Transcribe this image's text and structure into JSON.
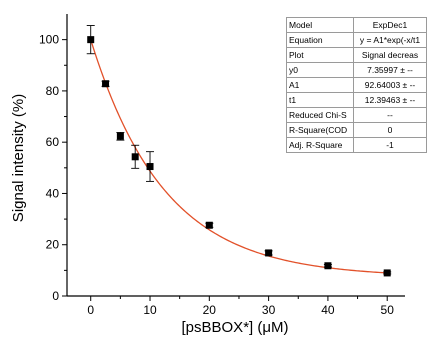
{
  "chart_data": {
    "type": "scatter",
    "xlabel": "[psBBOX*] (μM)",
    "ylabel": "Signal intensity (%)",
    "xlim": [
      -4,
      53
    ],
    "ylim": [
      0,
      110
    ],
    "xticks": [
      0,
      10,
      20,
      30,
      40,
      50
    ],
    "xticklabels": [
      "0",
      "10",
      "20",
      "30",
      "40",
      "50"
    ],
    "yticks": [
      0,
      20,
      40,
      60,
      80,
      100
    ],
    "yticklabels": [
      "0",
      "20",
      "40",
      "60",
      "80",
      "100"
    ],
    "grid": false,
    "points": [
      {
        "x": 0,
        "y": 100,
        "err": 5.5
      },
      {
        "x": 2.5,
        "y": 82.8,
        "err": 1.0
      },
      {
        "x": 5,
        "y": 62.3,
        "err": 1.5
      },
      {
        "x": 7.5,
        "y": 54.3,
        "err": 4.5
      },
      {
        "x": 10,
        "y": 50.5,
        "err": 5.8
      },
      {
        "x": 20,
        "y": 27.6,
        "err": 0.8
      },
      {
        "x": 30,
        "y": 16.8,
        "err": 0.8
      },
      {
        "x": 40,
        "y": 11.8,
        "err": 0.5
      },
      {
        "x": 50,
        "y": 9.0,
        "err": 0.4
      }
    ],
    "fit": {
      "y0": 7.35997,
      "A1": 92.64003,
      "t1": 12.39463
    },
    "marker_color": "#000000",
    "fit_color": "#e2512a"
  },
  "fit_table": {
    "rows": [
      {
        "key": "Model",
        "value": "ExpDec1"
      },
      {
        "key": "Equation",
        "value": "y = A1*exp(-x/t1"
      },
      {
        "key": "Plot",
        "value": "Signal decreas"
      },
      {
        "key": "y0",
        "value": "7.35997 ± --"
      },
      {
        "key": "A1",
        "value": "92.64003 ± --"
      },
      {
        "key": "t1",
        "value": "12.39463 ± --"
      },
      {
        "key": "Reduced Chi-S",
        "value": "--"
      },
      {
        "key": "R-Square(COD",
        "value": "0"
      },
      {
        "key": "Adj. R-Square",
        "value": "-1"
      }
    ]
  }
}
